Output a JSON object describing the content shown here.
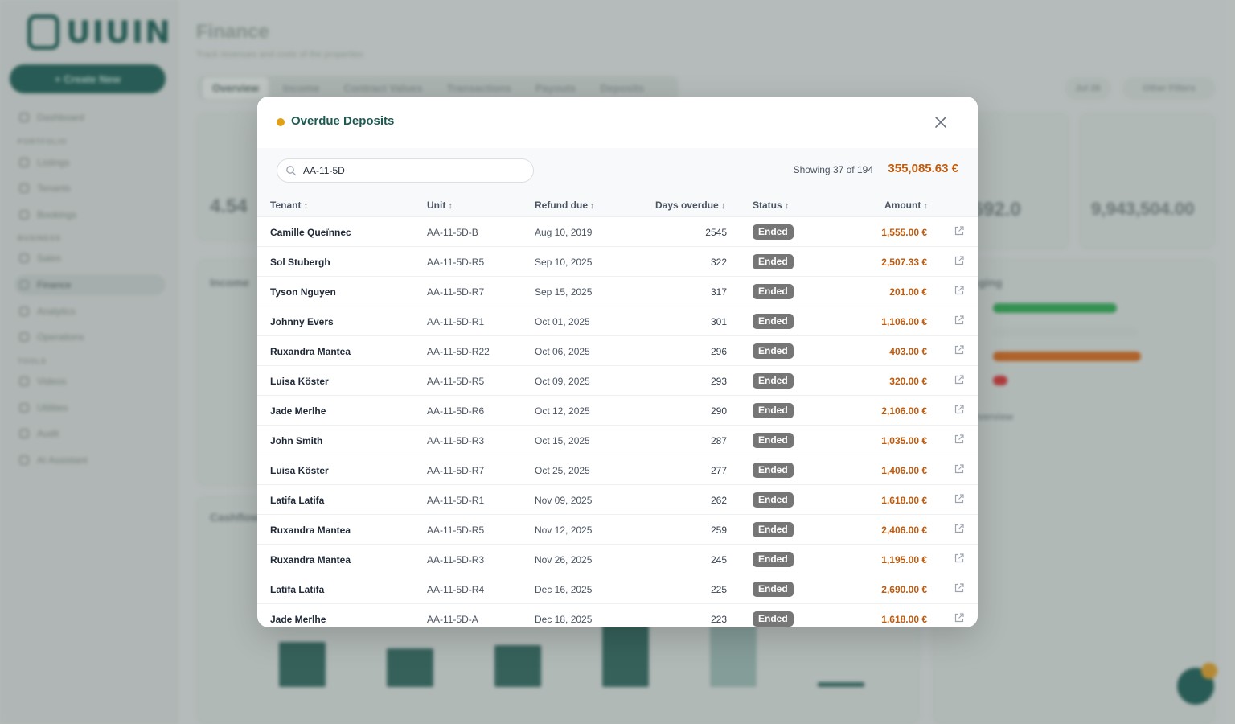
{
  "background": {
    "logo_text": "UIUIN",
    "create_label": "+ Create New",
    "nav_sections": [
      "PORTFOLIO",
      "BUSINESS",
      "TOOLS"
    ],
    "nav_items": [
      "Dashboard",
      "Listings",
      "Tenants",
      "Bookings",
      "Sales",
      "Finance",
      "Analytics",
      "Operations",
      "Videos",
      "Utilities",
      "Audit",
      "AI Assistant"
    ],
    "page_title": "Finance",
    "page_subtitle": "Track revenues and costs of the properties",
    "tabs": [
      "Overview",
      "Income",
      "Contract Values",
      "Transactions",
      "Payouts",
      "Deposits"
    ],
    "chips": [
      "Jul 26",
      "Other Filters"
    ],
    "kpi_values": [
      "4.54",
      "031,692.0",
      "9,943,504.00"
    ],
    "section_labels": [
      "Income",
      "Cashflow",
      "Aging",
      "Overview"
    ]
  },
  "modal": {
    "title": "Overdue Deposits",
    "accent": "#e2a114",
    "search": {
      "value": "AA-11-5D",
      "placeholder": "Search"
    },
    "showing": "Showing 37 of 194",
    "total": "355,085.63 €",
    "columns": {
      "tenant": "Tenant",
      "unit": "Unit",
      "refund_due": "Refund due",
      "days_overdue": "Days overdue",
      "status": "Status",
      "amount": "Amount"
    },
    "rows": [
      {
        "tenant": "Camille Queïnnec",
        "unit": "AA-11-5D-B",
        "due": "Aug 10, 2019",
        "days": "2545",
        "status": "Ended",
        "amount": "1,555.00 €"
      },
      {
        "tenant": "Sol Stubergh",
        "unit": "AA-11-5D-R5",
        "due": "Sep 10, 2025",
        "days": "322",
        "status": "Ended",
        "amount": "2,507.33 €"
      },
      {
        "tenant": "Tyson Nguyen",
        "unit": "AA-11-5D-R7",
        "due": "Sep 15, 2025",
        "days": "317",
        "status": "Ended",
        "amount": "201.00 €"
      },
      {
        "tenant": "Johnny Evers",
        "unit": "AA-11-5D-R1",
        "due": "Oct 01, 2025",
        "days": "301",
        "status": "Ended",
        "amount": "1,106.00 €"
      },
      {
        "tenant": "Ruxandra Mantea",
        "unit": "AA-11-5D-R22",
        "due": "Oct 06, 2025",
        "days": "296",
        "status": "Ended",
        "amount": "403.00 €"
      },
      {
        "tenant": "Luisa Köster",
        "unit": "AA-11-5D-R5",
        "due": "Oct 09, 2025",
        "days": "293",
        "status": "Ended",
        "amount": "320.00 €"
      },
      {
        "tenant": "Jade Merlhe",
        "unit": "AA-11-5D-R6",
        "due": "Oct 12, 2025",
        "days": "290",
        "status": "Ended",
        "amount": "2,106.00 €"
      },
      {
        "tenant": "John Smith",
        "unit": "AA-11-5D-R3",
        "due": "Oct 15, 2025",
        "days": "287",
        "status": "Ended",
        "amount": "1,035.00 €"
      },
      {
        "tenant": "Luisa Köster",
        "unit": "AA-11-5D-R7",
        "due": "Oct 25, 2025",
        "days": "277",
        "status": "Ended",
        "amount": "1,406.00 €"
      },
      {
        "tenant": "Latifa Latifa",
        "unit": "AA-11-5D-R1",
        "due": "Nov 09, 2025",
        "days": "262",
        "status": "Ended",
        "amount": "1,618.00 €"
      },
      {
        "tenant": "Ruxandra Mantea",
        "unit": "AA-11-5D-R5",
        "due": "Nov 12, 2025",
        "days": "259",
        "status": "Ended",
        "amount": "2,406.00 €"
      },
      {
        "tenant": "Ruxandra Mantea",
        "unit": "AA-11-5D-R3",
        "due": "Nov 26, 2025",
        "days": "245",
        "status": "Ended",
        "amount": "1,195.00 €"
      },
      {
        "tenant": "Latifa Latifa",
        "unit": "AA-11-5D-R4",
        "due": "Dec 16, 2025",
        "days": "225",
        "status": "Ended",
        "amount": "2,690.00 €"
      },
      {
        "tenant": "Jade Merlhe",
        "unit": "AA-11-5D-A",
        "due": "Dec 18, 2025",
        "days": "223",
        "status": "Ended",
        "amount": "1,618.00 €"
      }
    ]
  }
}
